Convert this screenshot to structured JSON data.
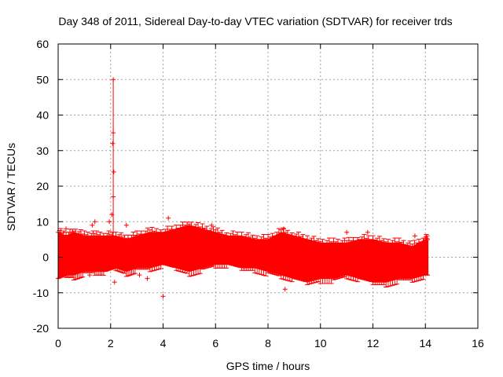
{
  "chart_data": {
    "type": "scatter",
    "title": "Day 348 of 2011, Sidereal Day-to-day VTEC variation (SDTVAR) for receiver trds",
    "xlabel": "GPS time / hours",
    "ylabel": "SDTVAR / TECUs",
    "xlim": [
      0,
      16
    ],
    "ylim": [
      -20,
      60
    ],
    "xticks": [
      0,
      2,
      4,
      6,
      8,
      10,
      12,
      14,
      16
    ],
    "yticks": [
      -20,
      -10,
      0,
      10,
      20,
      30,
      40,
      50,
      60
    ],
    "grid": true,
    "color": "#ff0000",
    "series": [
      {
        "name": "SDTVAR",
        "band": {
          "x": [
            0.0,
            0.3,
            0.6,
            1.0,
            1.4,
            1.8,
            2.2,
            2.6,
            3.0,
            3.5,
            4.0,
            4.5,
            5.0,
            5.5,
            6.0,
            6.5,
            7.0,
            7.5,
            8.0,
            8.5,
            9.0,
            9.5,
            10.0,
            10.5,
            11.0,
            11.5,
            12.0,
            12.5,
            13.0,
            13.5,
            14.0,
            14.1
          ],
          "upper": [
            7,
            6,
            7,
            6,
            6,
            6,
            6,
            5,
            6,
            7,
            7,
            8,
            9,
            8,
            7,
            6,
            6,
            5,
            5,
            7,
            6,
            5,
            4,
            4,
            4,
            5,
            5,
            4,
            4,
            3,
            5,
            5
          ],
          "lower": [
            -6,
            -5,
            -5,
            -4,
            -4,
            -4,
            -3,
            -4,
            -3,
            -3,
            -2,
            -3,
            -4,
            -3,
            -2,
            -2,
            -3,
            -3,
            -4,
            -5,
            -6,
            -7,
            -6,
            -6,
            -5,
            -6,
            -7,
            -7,
            -6,
            -6,
            -5,
            -5
          ]
        },
        "outliers": {
          "x": [
            2.1,
            2.1,
            2.08,
            2.12,
            2.1,
            1.95,
            2.05,
            1.4,
            1.3,
            0.3,
            2.6,
            4.2,
            4.0,
            5.85,
            8.6,
            8.65,
            11.0,
            11.8,
            13.6,
            3.1,
            3.4,
            1.2,
            2.15
          ],
          "y": [
            50,
            35,
            32,
            24,
            17,
            10,
            12,
            10,
            9,
            8,
            9,
            11,
            -11,
            9,
            8,
            -9,
            7,
            7,
            6,
            -5,
            -6,
            -5,
            -7
          ]
        },
        "spike": {
          "x": 2.1,
          "y_low": 4,
          "y_high": 50
        }
      }
    ]
  }
}
